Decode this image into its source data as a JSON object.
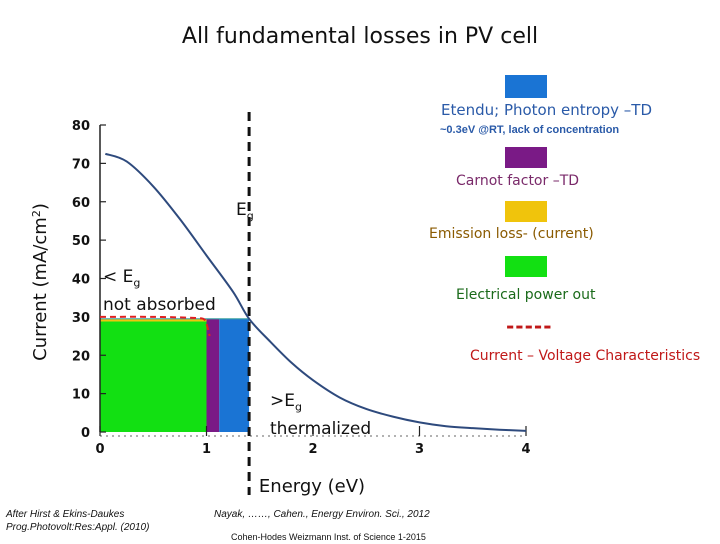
{
  "title": "All fundamental losses in PV cell",
  "colors": {
    "curve": "#2e4a7d",
    "electrical": "#12e012",
    "emission": "#f0c40c",
    "carnot": "#7a1a86",
    "etendu": "#1a74d4",
    "iv_curve": "#e02020",
    "label_blue": "#2a5aa8",
    "label_purple": "#7a2a6a",
    "label_gold": "#8a5a00",
    "label_green": "#1a6a1a",
    "label_red": "#c01818"
  },
  "legend": {
    "etendu": {
      "label": "Etendu; Photon entropy –TD",
      "note": "~0.3eV @RT, lack of concentration"
    },
    "carnot": {
      "label": "Carnot factor –TD"
    },
    "emission": {
      "label": "Emission loss- (current)"
    },
    "electrical": {
      "label": "Electrical power out"
    },
    "iv": {
      "line": "-----",
      "label": "Current – Voltage Characteristics"
    }
  },
  "annotations": {
    "eg_main": "E",
    "eg_sub": "g",
    "below_lt": "< E",
    "below_sub": "g",
    "below_text": "not absorbed",
    "above_gt": ">E",
    "above_sub": "g",
    "above_text": "thermalized"
  },
  "footnotes": {
    "left_line1": "After Hirst & Ekins-Daukes",
    "left_line2": "Prog.Photovolt:Res:Appl. (2010)",
    "center": "Nayak, ……, Cahen.,  Energy Environ. Sci., 2012",
    "bottom": "Cohen-Hodes Weizmann Inst. of Science 1-2015"
  },
  "chart_data": {
    "type": "area",
    "xlabel": "Energy (eV)",
    "ylabel_main": "Current (mA/cm",
    "ylabel_sup": "2",
    "ylabel_close": ")",
    "xlim": [
      0,
      4
    ],
    "ylim": [
      0,
      80
    ],
    "x_ticks": [
      0,
      1,
      2,
      3,
      4
    ],
    "y_ticks": [
      0,
      10,
      20,
      30,
      40,
      50,
      60,
      70,
      80
    ],
    "grid": false,
    "bandgap_eV": 1.4,
    "current_curve": {
      "x": [
        0.05,
        0.25,
        0.5,
        0.75,
        1.0,
        1.25,
        1.4,
        1.6,
        1.8,
        2.0,
        2.25,
        2.5,
        2.75,
        3.0,
        3.25,
        3.5,
        3.75,
        4.0
      ],
      "y": [
        72.5,
        70.5,
        64,
        55.5,
        46,
        36.5,
        29.5,
        23.5,
        18,
        13.5,
        9,
        6,
        4,
        2.5,
        1.5,
        1,
        0.6,
        0.3
      ]
    },
    "loss_regions": [
      {
        "name": "Electrical power out",
        "x0": 0.0,
        "x1": 1.0,
        "y0": 0,
        "y1": 28.8
      },
      {
        "name": "Emission loss- (current)",
        "x0": 0.0,
        "x1": 1.0,
        "y0": 28.8,
        "y1": 29.5
      },
      {
        "name": "Carnot factor –TD",
        "x0": 1.0,
        "x1": 1.12,
        "y0": 0,
        "y1": 29.5
      },
      {
        "name": "Etendu; Photon entropy –TD",
        "x0": 1.12,
        "x1": 1.4,
        "y0": 0,
        "y1": 29.5
      }
    ],
    "iv_curve": {
      "x": [
        0.0,
        0.5,
        0.9,
        0.98,
        1.0,
        1.03
      ],
      "y": [
        30,
        30,
        29.7,
        29.3,
        28.2,
        25
      ]
    }
  }
}
